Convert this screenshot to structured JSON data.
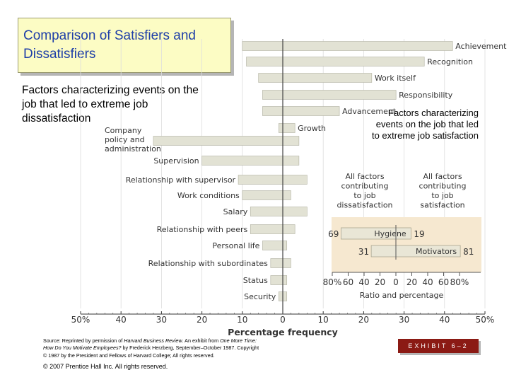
{
  "slide": {
    "title": "Comparison of Satisfiers and Dissatisfiers",
    "left_description": "Factors characterizing events on the job that led to extreme job dissatisfaction",
    "right_description": "Factors characterizing events on the job that led to extreme job satisfaction",
    "source_line1_prefix": "Source: Reprinted by permission of ",
    "source_line1_journal": "Harvard Business Review",
    "source_line1_mid": ". An exhibit from ",
    "source_line1_title": "One More Time:",
    "source_line2_title": "How Do You Motivate Employees?",
    "source_line2_rest": " by Frederick Herzberg, September–October 1987. Copyright",
    "source_line3": "© 1987 by the President and Fellows of Harvard College; All rights reserved.",
    "copyright": "© 2007 Prentice Hall Inc. All rights reserved.",
    "exhibit": "EXHIBIT 6–2"
  },
  "chart_data": [
    {
      "type": "bar",
      "orientation": "horizontal-diverging",
      "title": "",
      "xlabel": "Percentage frequency",
      "xlim": [
        -50,
        50
      ],
      "ticks": [
        "50%",
        "40",
        "30",
        "20",
        "10",
        "0",
        "10",
        "20",
        "30",
        "40",
        "50%"
      ],
      "categories": [
        "Achievement",
        "Recognition",
        "Work itself",
        "Responsibility",
        "Advancement",
        "Growth",
        "Company policy and administration",
        "Supervision",
        "Relationship with supervisor",
        "Work conditions",
        "Salary",
        "Relationship with peers",
        "Personal life",
        "Relationship with subordinates",
        "Status",
        "Security"
      ],
      "series": [
        {
          "name": "Dissatisfaction",
          "values": [
            10,
            9,
            6,
            5,
            5,
            1,
            32,
            20,
            11,
            10,
            8,
            8,
            5,
            3,
            3,
            1
          ]
        },
        {
          "name": "Satisfaction",
          "values": [
            42,
            35,
            22,
            28,
            14,
            3,
            4,
            4,
            6,
            2,
            6,
            3,
            1,
            2,
            1,
            1
          ]
        }
      ]
    },
    {
      "type": "bar",
      "orientation": "horizontal-diverging",
      "title": "Ratio and percentage",
      "headers": [
        "All factors contributing to job dissatisfaction",
        "All factors contributing to job satisfaction"
      ],
      "ticks": [
        "80%",
        "60",
        "40",
        "20",
        "0",
        "20",
        "40",
        "60",
        "80%"
      ],
      "xlim": [
        -80,
        80
      ],
      "categories": [
        "Hygiene",
        "Motivators"
      ],
      "series": [
        {
          "name": "Dissatisfaction",
          "values": [
            69,
            31
          ]
        },
        {
          "name": "Satisfaction",
          "values": [
            19,
            81
          ]
        }
      ]
    }
  ]
}
